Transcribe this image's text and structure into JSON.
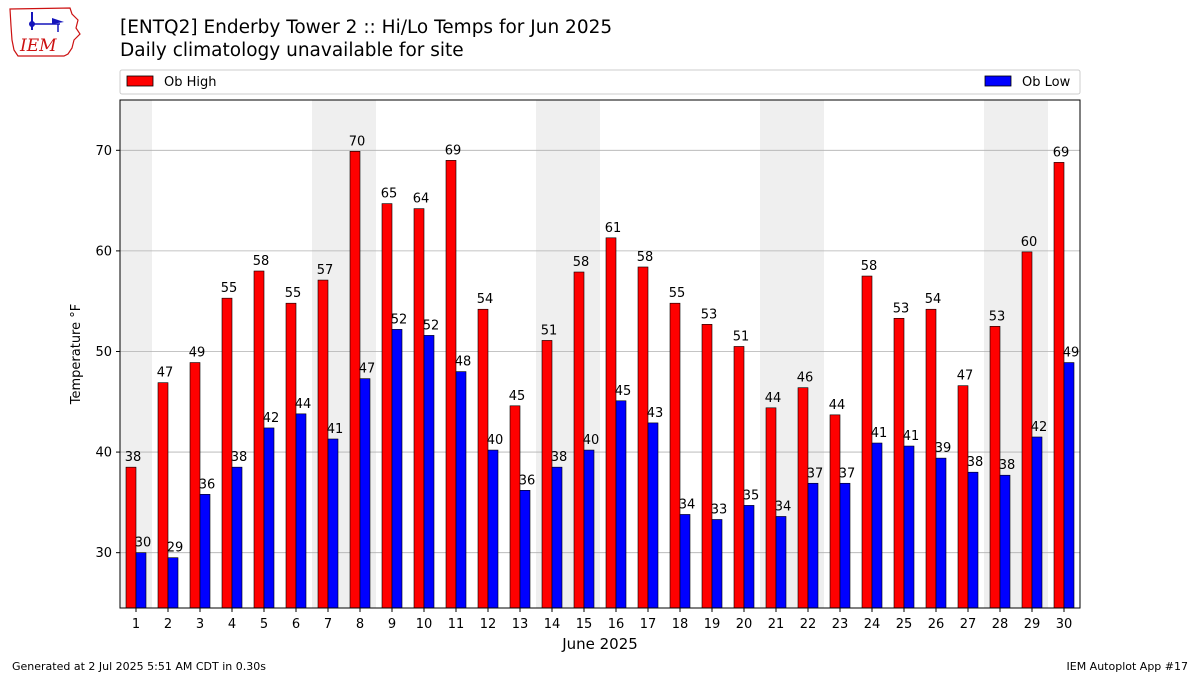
{
  "title": "[ENTQ2] Enderby Tower 2 :: Hi/Lo Temps for Jun 2025",
  "subtitle": "Daily climatology unavailable for site",
  "logo_text": "IEM",
  "footer_left": "Generated at 2 Jul 2025 5:51 AM CDT in 0.30s",
  "footer_right": "IEM Autoplot App #17",
  "colors": {
    "high": "#ff0000",
    "low": "#0000ff",
    "weekend_shade": "#efefef",
    "grid": "#b0b0b0",
    "logo": "#cc1111"
  },
  "chart_data": {
    "type": "bar",
    "xlabel": "June 2025",
    "ylabel": "Temperature °F",
    "ylim": [
      24.5,
      75
    ],
    "yticks": [
      30,
      40,
      50,
      60,
      70
    ],
    "grid": "horizontal",
    "legend_position": "top",
    "weekend_days": [
      1,
      7,
      8,
      14,
      15,
      21,
      22,
      28,
      29
    ],
    "categories": [
      1,
      2,
      3,
      4,
      5,
      6,
      7,
      8,
      9,
      10,
      11,
      12,
      13,
      14,
      15,
      16,
      17,
      18,
      19,
      20,
      21,
      22,
      23,
      24,
      25,
      26,
      27,
      28,
      29,
      30
    ],
    "series": [
      {
        "name": "Ob High",
        "color": "#ff0000",
        "values": [
          38.5,
          46.9,
          48.9,
          55.3,
          58.0,
          54.8,
          57.1,
          69.9,
          64.7,
          64.2,
          69.0,
          54.2,
          44.6,
          51.1,
          57.9,
          61.3,
          58.4,
          54.8,
          52.7,
          50.5,
          44.4,
          46.4,
          43.7,
          57.5,
          53.3,
          54.2,
          46.6,
          52.5,
          59.9,
          68.8
        ],
        "labels": [
          38,
          47,
          49,
          55,
          58,
          55,
          57,
          70,
          65,
          64,
          69,
          54,
          45,
          51,
          58,
          61,
          58,
          55,
          53,
          51,
          44,
          46,
          44,
          58,
          53,
          54,
          47,
          53,
          60,
          69
        ]
      },
      {
        "name": "Ob Low",
        "color": "#0000ff",
        "values": [
          30.0,
          29.5,
          35.8,
          38.5,
          42.4,
          43.8,
          41.3,
          47.3,
          52.2,
          51.6,
          48.0,
          40.2,
          36.2,
          38.5,
          40.2,
          45.1,
          42.9,
          33.8,
          33.3,
          34.7,
          33.6,
          36.9,
          36.9,
          40.9,
          40.6,
          39.4,
          38.0,
          37.7,
          41.5,
          48.9
        ],
        "labels": [
          30,
          29,
          36,
          38,
          42,
          44,
          41,
          47,
          52,
          52,
          48,
          40,
          36,
          38,
          40,
          45,
          43,
          34,
          33,
          35,
          34,
          37,
          37,
          41,
          41,
          39,
          38,
          38,
          42,
          49
        ]
      }
    ]
  }
}
